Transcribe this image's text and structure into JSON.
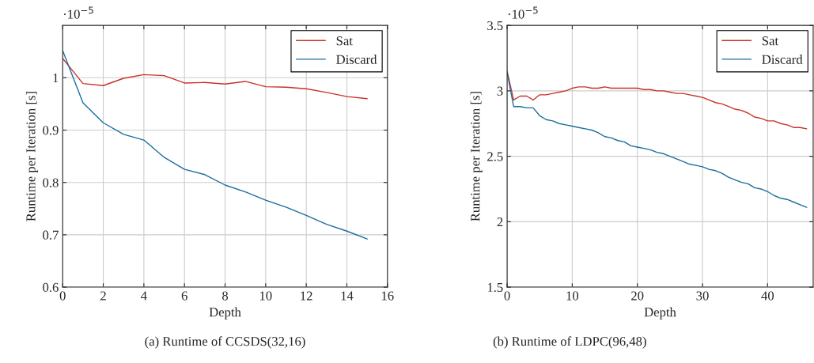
{
  "chart_data": [
    {
      "type": "line",
      "title": "(a) Runtime of CCSDS(32,16)",
      "xlabel": "Depth",
      "ylabel": "Runtime per Iteration [s]",
      "annotations": [
        "·10$^{−5}$"
      ],
      "x": [
        0,
        1,
        2,
        3,
        4,
        5,
        6,
        7,
        8,
        9,
        10,
        11,
        12,
        13,
        14,
        15
      ],
      "series": [
        {
          "name": "Sat",
          "color": "#c8322a",
          "values": [
            1.037,
            0.989,
            0.985,
            0.999,
            1.006,
            1.004,
            0.99,
            0.991,
            0.988,
            0.993,
            0.983,
            0.982,
            0.979,
            0.972,
            0.964,
            0.96
          ]
        },
        {
          "name": "Discard",
          "color": "#1a6e9e",
          "values": [
            1.052,
            0.952,
            0.914,
            0.892,
            0.881,
            0.848,
            0.825,
            0.815,
            0.795,
            0.782,
            0.766,
            0.753,
            0.737,
            0.72,
            0.707,
            0.692
          ]
        }
      ],
      "xlim": [
        0,
        16
      ],
      "ylim": [
        0.6,
        1.1
      ],
      "xticks": [
        0,
        2,
        4,
        6,
        8,
        10,
        12,
        14,
        16
      ],
      "yticks": [
        0.6,
        0.7,
        0.8,
        0.9,
        1
      ],
      "grid": true,
      "legend": "top right"
    },
    {
      "type": "line",
      "title": "(b) Runtime of LDPC(96,48)",
      "xlabel": "Depth",
      "ylabel": "Runtime per Iteration [s]",
      "annotations": [
        "·10$^{−5}$"
      ],
      "x": [
        0,
        1,
        2,
        3,
        4,
        5,
        6,
        7,
        8,
        9,
        10,
        11,
        12,
        13,
        14,
        15,
        16,
        17,
        18,
        19,
        20,
        21,
        22,
        23,
        24,
        25,
        26,
        27,
        28,
        29,
        30,
        31,
        32,
        33,
        34,
        35,
        36,
        37,
        38,
        39,
        40,
        41,
        42,
        43,
        44,
        45,
        46
      ],
      "series": [
        {
          "name": "Sat",
          "color": "#c8322a",
          "values": [
            3.15,
            2.93,
            2.96,
            2.96,
            2.93,
            2.97,
            2.97,
            2.98,
            2.99,
            3.0,
            3.02,
            3.03,
            3.03,
            3.02,
            3.02,
            3.03,
            3.02,
            3.02,
            3.02,
            3.02,
            3.02,
            3.01,
            3.01,
            3.0,
            3.0,
            2.99,
            2.98,
            2.98,
            2.97,
            2.96,
            2.95,
            2.93,
            2.91,
            2.9,
            2.88,
            2.86,
            2.85,
            2.83,
            2.8,
            2.79,
            2.77,
            2.77,
            2.75,
            2.74,
            2.72,
            2.72,
            2.71
          ]
        },
        {
          "name": "Discard",
          "color": "#1a6e9e",
          "values": [
            3.14,
            2.88,
            2.88,
            2.87,
            2.87,
            2.81,
            2.78,
            2.77,
            2.75,
            2.74,
            2.73,
            2.72,
            2.71,
            2.7,
            2.68,
            2.65,
            2.64,
            2.62,
            2.61,
            2.58,
            2.57,
            2.56,
            2.55,
            2.53,
            2.52,
            2.5,
            2.48,
            2.46,
            2.44,
            2.43,
            2.42,
            2.4,
            2.39,
            2.37,
            2.34,
            2.32,
            2.3,
            2.29,
            2.26,
            2.25,
            2.23,
            2.2,
            2.18,
            2.17,
            2.15,
            2.13,
            2.11
          ]
        }
      ],
      "xlim": [
        0,
        47
      ],
      "ylim": [
        1.5,
        3.5
      ],
      "xticks": [
        0,
        10,
        20,
        30,
        40
      ],
      "yticks": [
        1.5,
        2,
        2.5,
        3,
        3.5
      ],
      "grid": true,
      "legend": "top right"
    }
  ]
}
